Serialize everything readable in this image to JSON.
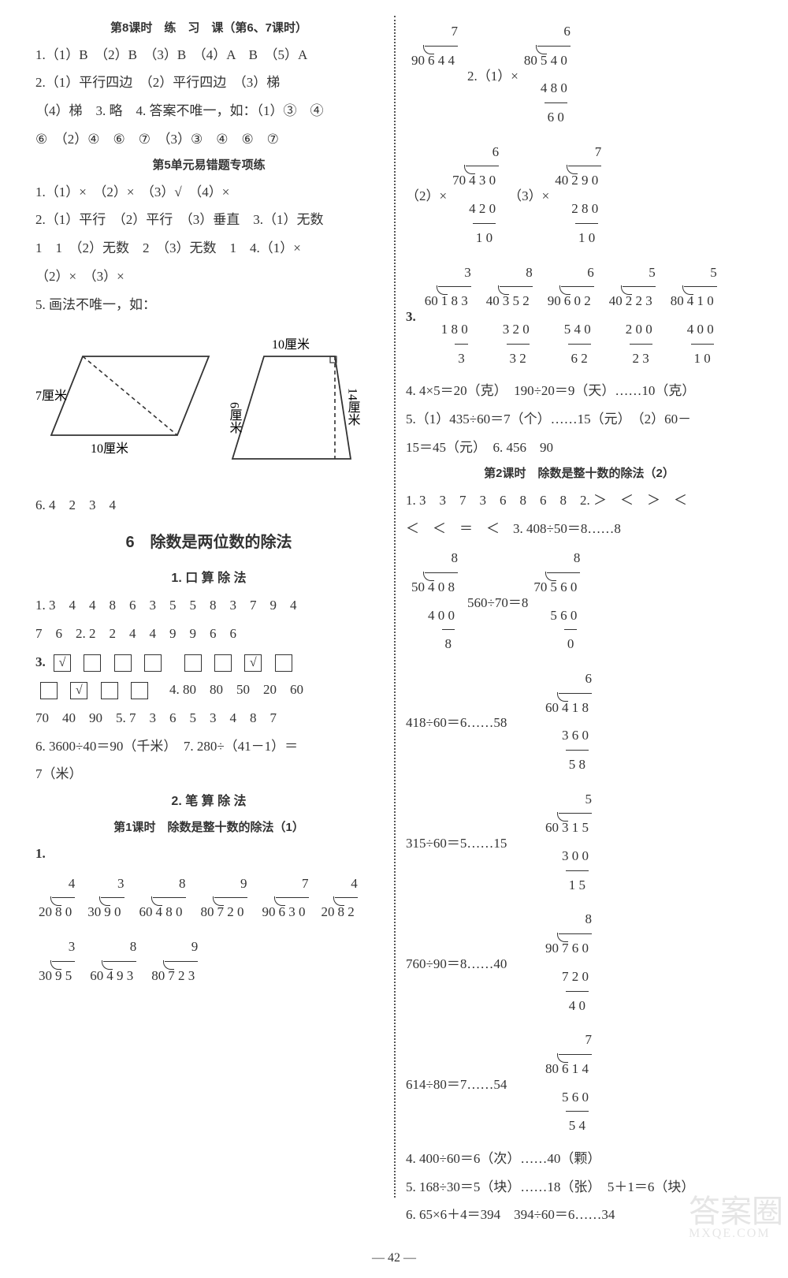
{
  "page_number": "— 42 —",
  "watermark": {
    "large": "答案圈",
    "small": "MXQE.COM"
  },
  "left": {
    "lesson8_title": "第8课时　练　习　课（第6、7课时）",
    "l1": "1.（1）B　（2）B　（3）B　（4）A　B　（5）A",
    "l2": "2.（1）平行四边　（2）平行四边　（3）梯",
    "l3": "（4）梯　3. 略　4. 答案不唯一，如：（1）③　④",
    "l4": "⑥　（2）④　⑥　⑦　（3）③　④　⑥　⑦",
    "unit5err_title": "第5单元易错题专项练",
    "u1": "1.（1）×　（2）×　（3）√　（4）×",
    "u2": "2.（1）平行　（2）平行　（3）垂直　3.（1）无数",
    "u3": "1　1　（2）无数　2　（3）无数　1　4.（1）×",
    "u4": "（2）×　（3）×",
    "u5": "5. 画法不唯一，如：",
    "diagram": {
      "shape1_label_left": "7厘米",
      "shape1_label_bottom": "10厘米",
      "shape2_label_top": "10厘米",
      "shape2_label_left": "6厘米",
      "shape2_label_right": "14厘米",
      "stroke": "#333"
    },
    "u6": "6. 4　2　3　4",
    "chapter6_title": "6　除数是两位数的除法",
    "sec1_title": "1. 口 算 除 法",
    "s1a": "1. 3　4　4　8　6　3　5　5　8　3　7　9　4",
    "s1b": "7　6　2. 2　2　4　4　9　9　6　6",
    "s3_label": "3.",
    "s3_checks_row1": [
      "√",
      "",
      "",
      "",
      "",
      "",
      "√",
      ""
    ],
    "s3_checks_row2": [
      "",
      "√",
      "",
      ""
    ],
    "s3_tail": "4. 80　80　50　20　60",
    "s4": "70　40　90　5. 7　3　6　5　3　4　8　7",
    "s5": "6. 3600÷40＝90（千米）　7. 280÷（41－1）＝",
    "s6": "7（米）",
    "sec2_title": "2. 笔 算 除 法",
    "l2_lesson1_title": "第1课时　除数是整十数的除法（1）",
    "p1_label": "1.",
    "ld": {
      "a": {
        "divisor": "20",
        "dividend": "8 0",
        "q": "4"
      },
      "b": {
        "divisor": "30",
        "dividend": "9 0",
        "q": "3"
      },
      "c": {
        "divisor": "60",
        "dividend": "4 8 0",
        "q": "8"
      },
      "d": {
        "divisor": "80",
        "dividend": "7 2 0",
        "q": "9"
      },
      "e": {
        "divisor": "90",
        "dividend": "6 3 0",
        "q": "7"
      },
      "f": {
        "divisor": "20",
        "dividend": "8 2",
        "q": "4"
      },
      "g": {
        "divisor": "30",
        "dividend": "9 5",
        "q": "3"
      },
      "h": {
        "divisor": "60",
        "dividend": "4 9 3",
        "q": "8"
      },
      "i": {
        "divisor": "80",
        "dividend": "7 2 3",
        "q": "9"
      }
    }
  },
  "right": {
    "top_ld_a": {
      "divisor": "90",
      "dividend": "6 4 4",
      "q": "7"
    },
    "top_label": "2.（1）×",
    "top_ld_b": {
      "divisor": "80",
      "dividend": "5 4 0",
      "q": "6",
      "sub": "4 8 0",
      "rem": "6 0"
    },
    "r2_label": "（2）×",
    "r2_ld_a": {
      "divisor": "70",
      "dividend": "4 3 0",
      "q": "6",
      "sub": "4 2 0",
      "rem": "1 0"
    },
    "r2_mid": "（3）×",
    "r2_ld_b": {
      "divisor": "40",
      "dividend": "2 9 0",
      "q": "7",
      "sub": "2 8 0",
      "rem": "1 0"
    },
    "r3_label": "3.",
    "r3_ld_a": {
      "divisor": "60",
      "dividend": "1 8 3",
      "q": "3",
      "sub": "1 8 0",
      "rem": "3"
    },
    "r3_ld_b": {
      "divisor": "40",
      "dividend": "3 5 2",
      "q": "8",
      "sub": "3 2 0",
      "rem": "3 2"
    },
    "r3_ld_c": {
      "divisor": "90",
      "dividend": "6 0 2",
      "q": "6",
      "sub": "5 4 0",
      "rem": "6 2"
    },
    "r3_ld_d": {
      "divisor": "40",
      "dividend": "2 2 3",
      "q": "5",
      "sub": "2 0 0",
      "rem": "2 3"
    },
    "r3_ld_e": {
      "divisor": "80",
      "dividend": "4 1 0",
      "q": "5",
      "sub": "4 0 0",
      "rem": "1 0"
    },
    "r4": "4. 4×5＝20（克）　190÷20＝9（天）……10（克）",
    "r5": "5.（1）435÷60＝7（个）……15（元）　（2）60－",
    "r5b": "15＝45（元）　6. 456　90",
    "lesson2_title": "第2课时　除数是整十数的除法（2）",
    "t1": "1. 3　3　7　3　6　8　6　8　2. ＞　＜　＞　＜",
    "t2": "＜　＜　＝　＜　3. 408÷50＝8……8",
    "t3_ld_a": {
      "divisor": "50",
      "dividend": "4 0 8",
      "q": "8",
      "sub": "4 0 0",
      "rem": "8"
    },
    "t3_mid": "560÷70＝8",
    "t3_ld_b": {
      "divisor": "70",
      "dividend": "5 6 0",
      "q": "8",
      "sub": "5 6 0",
      "rem": "0"
    },
    "t4_text": "418÷60＝6……58",
    "t4_ld": {
      "divisor": "60",
      "dividend": "4 1 8",
      "q": "6",
      "sub": "3 6 0",
      "rem": "5 8"
    },
    "t5_text": "315÷60＝5……15",
    "t5_ld": {
      "divisor": "60",
      "dividend": "3 1 5",
      "q": "5",
      "sub": "3 0 0",
      "rem": "1 5"
    },
    "t6_text": "760÷90＝8……40",
    "t6_ld": {
      "divisor": "90",
      "dividend": "7 6 0",
      "q": "8",
      "sub": "7 2 0",
      "rem": "4 0"
    },
    "t7_text": "614÷80＝7……54",
    "t7_ld": {
      "divisor": "80",
      "dividend": "6 1 4",
      "q": "7",
      "sub": "5 6 0",
      "rem": "5 4"
    },
    "t8": "4. 400÷60＝6（次）……40（颗）",
    "t9": "5. 168÷30＝5（块）……18（张）　5＋1＝6（块）",
    "t10": "6. 65×6＋4＝394　394÷60＝6……34"
  }
}
